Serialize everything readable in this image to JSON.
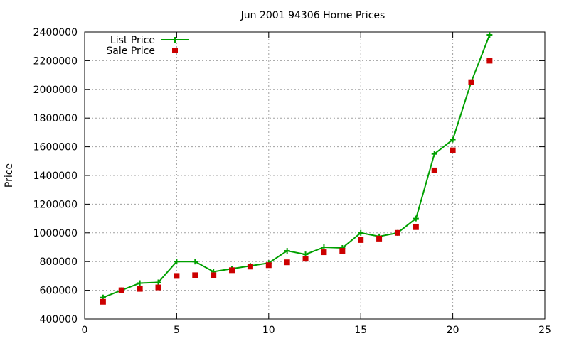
{
  "chart_data": {
    "type": "line",
    "title": "Jun 2001 94306 Home Prices",
    "xlabel": "",
    "ylabel": "Price",
    "xlim": [
      0,
      25
    ],
    "ylim": [
      400000,
      2400000
    ],
    "x_ticks": [
      0,
      5,
      10,
      15,
      20,
      25
    ],
    "y_ticks": [
      400000,
      600000,
      800000,
      1000000,
      1200000,
      1400000,
      1600000,
      1800000,
      2000000,
      2200000,
      2400000
    ],
    "x_tick_labels": [
      "0",
      "5",
      "10",
      "15",
      "20",
      "25"
    ],
    "y_tick_labels": [
      "400000",
      "600000",
      "800000",
      "1000000",
      "1200000",
      "1400000",
      "1600000",
      "1800000",
      "2000000",
      "2200000",
      "2400000"
    ],
    "grid": true,
    "legend": {
      "position": "top-left",
      "items": [
        {
          "label": "List Price",
          "style": "line+plus",
          "color": "#00a000"
        },
        {
          "label": "Sale Price",
          "style": "square",
          "color": "#cc0000"
        }
      ]
    },
    "series": [
      {
        "name": "List Price",
        "style": "line+plus",
        "color": "#00a000",
        "x": [
          1,
          2,
          3,
          4,
          5,
          6,
          7,
          8,
          9,
          10,
          11,
          12,
          13,
          14,
          15,
          16,
          17,
          18,
          19,
          20,
          21,
          22
        ],
        "y": [
          550000,
          600000,
          650000,
          655000,
          800000,
          800000,
          730000,
          750000,
          770000,
          790000,
          875000,
          850000,
          900000,
          895000,
          1000000,
          975000,
          1000000,
          1100000,
          1550000,
          1650000,
          2050000,
          2380000
        ]
      },
      {
        "name": "Sale Price",
        "style": "square",
        "color": "#cc0000",
        "x": [
          1,
          2,
          3,
          4,
          5,
          6,
          7,
          8,
          9,
          10,
          11,
          12,
          13,
          14,
          15,
          16,
          17,
          18,
          19,
          20,
          21,
          22
        ],
        "y": [
          520000,
          600000,
          610000,
          620000,
          700000,
          705000,
          705000,
          740000,
          765000,
          775000,
          795000,
          820000,
          865000,
          875000,
          950000,
          960000,
          1000000,
          1040000,
          1435000,
          1575000,
          2050000,
          2200000
        ]
      }
    ]
  }
}
